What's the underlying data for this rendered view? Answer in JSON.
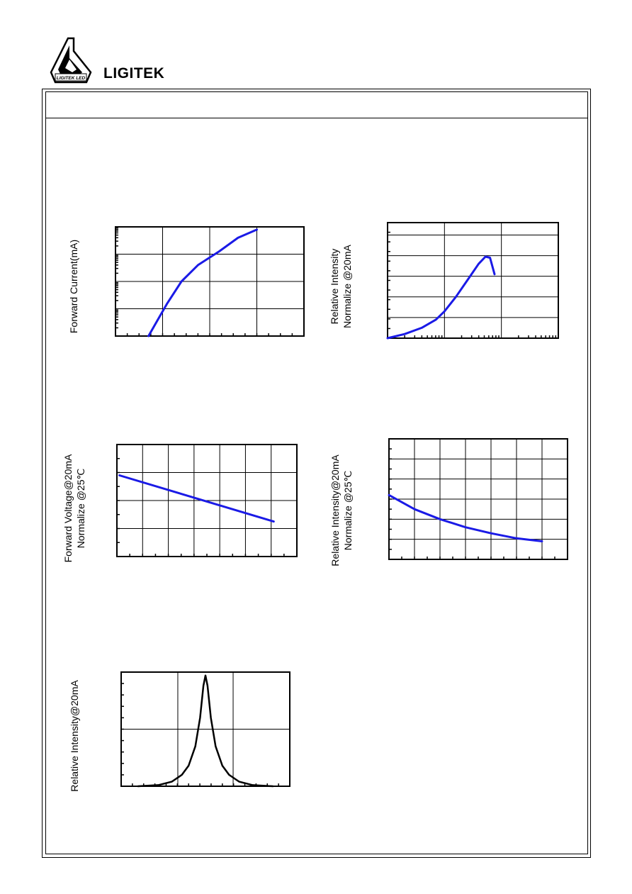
{
  "brand": {
    "name": "LIGITEK",
    "logo_text": "LIGITEK LED"
  },
  "chart_data": [
    {
      "type": "line",
      "ylabel": "Forward Current(mA)",
      "xlabel": "",
      "y_scale": "log",
      "color": "#1a1ae6",
      "grid": true,
      "series": [
        {
          "x": [
            0.14,
            0.18,
            0.22,
            0.28,
            0.35,
            0.44,
            0.52,
            0.6
          ],
          "y": [
            0.0,
            0.3,
            0.6,
            1.0,
            1.3,
            1.55,
            1.8,
            1.95
          ]
        }
      ]
    },
    {
      "type": "line",
      "ylabel": "Relative Intensity\nNormalize @20mA",
      "xlabel": "",
      "x_scale": "log",
      "color": "#1a1ae6",
      "grid": true,
      "series": [
        {
          "x": [
            0.0,
            0.3,
            0.6,
            0.85,
            1.0,
            1.2,
            1.4,
            1.6,
            1.72,
            1.8,
            1.88
          ],
          "y": [
            0.0,
            0.2,
            0.5,
            0.9,
            1.3,
            2.0,
            2.8,
            3.6,
            3.95,
            3.9,
            3.1
          ]
        }
      ]
    },
    {
      "type": "line",
      "ylabel": "Forward Voltage@20mA\nNormalize @25℃",
      "xlabel": "",
      "color": "#1a1ae6",
      "grid": true,
      "series": [
        {
          "x": [
            0,
            6
          ],
          "y": [
            2.9,
            1.25
          ]
        }
      ]
    },
    {
      "type": "line",
      "ylabel": "Relative Intensity@20mA\nNormalize @25℃",
      "xlabel": "",
      "color": "#1a1ae6",
      "grid": true,
      "series": [
        {
          "x": [
            0,
            1,
            2,
            3,
            4,
            5,
            6
          ],
          "y": [
            3.2,
            2.5,
            2.0,
            1.6,
            1.3,
            1.05,
            0.9
          ]
        }
      ]
    },
    {
      "type": "line",
      "ylabel": "Relative Intensity@20mA",
      "xlabel": "",
      "color": "#000000",
      "grid": true,
      "series": [
        {
          "x": [
            -1.0,
            -0.7,
            -0.5,
            -0.35,
            -0.25,
            -0.15,
            -0.08,
            -0.03,
            0.0,
            0.03,
            0.08,
            0.15,
            0.25,
            0.35,
            0.5,
            0.7,
            1.0
          ],
          "y": [
            0.0,
            0.01,
            0.04,
            0.1,
            0.18,
            0.35,
            0.6,
            0.88,
            0.97,
            0.88,
            0.6,
            0.35,
            0.18,
            0.1,
            0.04,
            0.01,
            0.0
          ]
        }
      ]
    }
  ]
}
